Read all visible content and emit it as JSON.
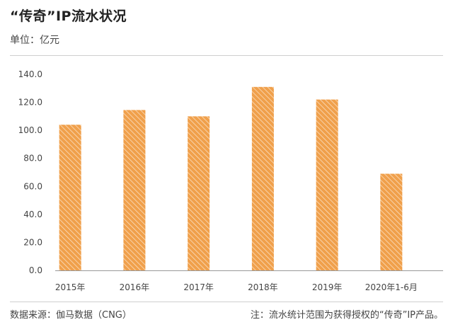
{
  "header": {
    "title": "“传奇”IP流水状况",
    "unit": "单位：亿元"
  },
  "footer": {
    "source": "数据来源：伽马数据（CNG）",
    "note": "注：流水统计范围为获得授权的“传奇”IP产品。"
  },
  "colors": {
    "bar": "#f0a04b",
    "bar_stripe": "#ffffff",
    "axis": "#999999"
  },
  "chart_data": {
    "type": "bar",
    "categories": [
      "2015年",
      "2016年",
      "2017年",
      "2018年",
      "2019年",
      "2020年1-6月"
    ],
    "values": [
      104.0,
      114.5,
      110.0,
      131.0,
      122.0,
      69.0
    ],
    "ylim": [
      0,
      140
    ],
    "yticks": [
      "0.0",
      "20.0",
      "40.0",
      "60.0",
      "80.0",
      "100.0",
      "120.0",
      "140.0"
    ],
    "grid": false
  }
}
